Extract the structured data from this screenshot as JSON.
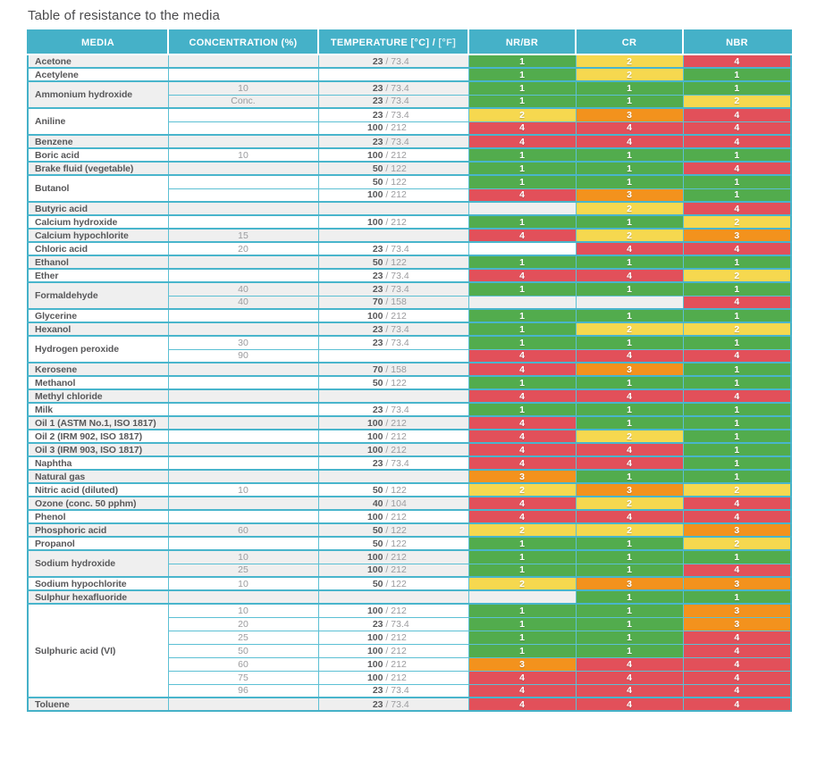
{
  "title": "Table of resistance to the media",
  "colors": {
    "header_bg": "#45b1c8",
    "border": "#5cc0d4",
    "group_border": "#49b5cc",
    "stripe": "#efefef",
    "rating_colors": {
      "1": "#52ac4d",
      "2": "#f6d84f",
      "3": "#f3921d",
      "4": "#e2505a"
    }
  },
  "table": {
    "columns": [
      {
        "key": "media",
        "label": "MEDIA"
      },
      {
        "key": "concentration",
        "label": "CONCENTRATION (%)"
      },
      {
        "key": "temperature",
        "label": "TEMPERATURE [°C] /",
        "label_light": "[°F]"
      },
      {
        "key": "nr-br",
        "label": "NR/BR"
      },
      {
        "key": "cr",
        "label": "CR"
      },
      {
        "key": "nbr",
        "label": "NBR"
      }
    ],
    "groups": [
      {
        "media": "Acetone",
        "rows": [
          {
            "concentration": "",
            "temperature": {
              "c": "23",
              "f": "73.4"
            },
            "ratings": [
              1,
              2,
              4
            ]
          }
        ]
      },
      {
        "media": "Acetylene",
        "rows": [
          {
            "concentration": "",
            "temperature": null,
            "ratings": [
              1,
              2,
              1
            ]
          }
        ]
      },
      {
        "media": "Ammonium hydroxide",
        "rows": [
          {
            "concentration": "10",
            "temperature": {
              "c": "23",
              "f": "73.4"
            },
            "ratings": [
              1,
              1,
              1
            ]
          },
          {
            "concentration": "Conc.",
            "temperature": {
              "c": "23",
              "f": "73.4"
            },
            "ratings": [
              1,
              1,
              2
            ]
          }
        ]
      },
      {
        "media": "Aniline",
        "rows": [
          {
            "concentration": "",
            "temperature": {
              "c": "23",
              "f": "73.4"
            },
            "ratings": [
              2,
              3,
              4
            ]
          },
          {
            "concentration": "",
            "temperature": {
              "c": "100",
              "f": "212"
            },
            "ratings": [
              4,
              4,
              4
            ]
          }
        ]
      },
      {
        "media": "Benzene",
        "rows": [
          {
            "concentration": "",
            "temperature": {
              "c": "23",
              "f": "73.4"
            },
            "ratings": [
              4,
              4,
              4
            ]
          }
        ]
      },
      {
        "media": "Boric acid",
        "rows": [
          {
            "concentration": "10",
            "temperature": {
              "c": "100",
              "f": "212"
            },
            "ratings": [
              1,
              1,
              1
            ]
          }
        ]
      },
      {
        "media": "Brake fluid (vegetable)",
        "rows": [
          {
            "concentration": "",
            "temperature": {
              "c": "50",
              "f": "122"
            },
            "ratings": [
              1,
              1,
              4
            ]
          }
        ]
      },
      {
        "media": "Butanol",
        "rows": [
          {
            "concentration": "",
            "temperature": {
              "c": "50",
              "f": "122"
            },
            "ratings": [
              1,
              1,
              1
            ]
          },
          {
            "concentration": "",
            "temperature": {
              "c": "100",
              "f": "212"
            },
            "ratings": [
              4,
              3,
              1
            ]
          }
        ]
      },
      {
        "media": "Butyric acid",
        "rows": [
          {
            "concentration": "",
            "temperature": null,
            "ratings": [
              null,
              2,
              4
            ]
          }
        ]
      },
      {
        "media": "Calcium hydroxide",
        "rows": [
          {
            "concentration": "",
            "temperature": {
              "c": "100",
              "f": "212"
            },
            "ratings": [
              1,
              1,
              2
            ]
          }
        ]
      },
      {
        "media": "Calcium hypochlorite",
        "rows": [
          {
            "concentration": "15",
            "temperature": null,
            "ratings": [
              4,
              2,
              3
            ]
          }
        ]
      },
      {
        "media": "Chloric acid",
        "rows": [
          {
            "concentration": "20",
            "temperature": {
              "c": "23",
              "f": "73.4"
            },
            "ratings": [
              null,
              4,
              4
            ]
          }
        ]
      },
      {
        "media": "Ethanol",
        "rows": [
          {
            "concentration": "",
            "temperature": {
              "c": "50",
              "f": "122"
            },
            "ratings": [
              1,
              1,
              1
            ]
          }
        ]
      },
      {
        "media": "Ether",
        "rows": [
          {
            "concentration": "",
            "temperature": {
              "c": "23",
              "f": "73.4"
            },
            "ratings": [
              4,
              4,
              2
            ]
          }
        ]
      },
      {
        "media": "Formaldehyde",
        "rows": [
          {
            "concentration": "40",
            "temperature": {
              "c": "23",
              "f": "73.4"
            },
            "ratings": [
              1,
              1,
              1
            ]
          },
          {
            "concentration": "40",
            "temperature": {
              "c": "70",
              "f": "158"
            },
            "ratings": [
              null,
              null,
              4
            ]
          }
        ]
      },
      {
        "media": "Glycerine",
        "rows": [
          {
            "concentration": "",
            "temperature": {
              "c": "100",
              "f": "212"
            },
            "ratings": [
              1,
              1,
              1
            ]
          }
        ]
      },
      {
        "media": "Hexanol",
        "rows": [
          {
            "concentration": "",
            "temperature": {
              "c": "23",
              "f": "73.4"
            },
            "ratings": [
              1,
              2,
              2
            ]
          }
        ]
      },
      {
        "media": "Hydrogen peroxide",
        "rows": [
          {
            "concentration": "30",
            "temperature": {
              "c": "23",
              "f": "73.4"
            },
            "ratings": [
              1,
              1,
              1
            ]
          },
          {
            "concentration": "90",
            "temperature": null,
            "ratings": [
              4,
              4,
              4
            ]
          }
        ]
      },
      {
        "media": "Kerosene",
        "rows": [
          {
            "concentration": "",
            "temperature": {
              "c": "70",
              "f": "158"
            },
            "ratings": [
              4,
              3,
              1
            ]
          }
        ]
      },
      {
        "media": "Methanol",
        "rows": [
          {
            "concentration": "",
            "temperature": {
              "c": "50",
              "f": "122"
            },
            "ratings": [
              1,
              1,
              1
            ]
          }
        ]
      },
      {
        "media": "Methyl chloride",
        "rows": [
          {
            "concentration": "",
            "temperature": null,
            "ratings": [
              4,
              4,
              4
            ]
          }
        ]
      },
      {
        "media": "Milk",
        "rows": [
          {
            "concentration": "",
            "temperature": {
              "c": "23",
              "f": "73.4"
            },
            "ratings": [
              1,
              1,
              1
            ]
          }
        ]
      },
      {
        "media": "Oil 1 (ASTM No.1, ISO 1817)",
        "rows": [
          {
            "concentration": "",
            "temperature": {
              "c": "100",
              "f": "212"
            },
            "ratings": [
              4,
              1,
              1
            ]
          }
        ]
      },
      {
        "media": "Oil 2 (IRM 902, ISO 1817)",
        "rows": [
          {
            "concentration": "",
            "temperature": {
              "c": "100",
              "f": "212"
            },
            "ratings": [
              4,
              2,
              1
            ]
          }
        ]
      },
      {
        "media": "Oil 3 (IRM 903, ISO 1817)",
        "rows": [
          {
            "concentration": "",
            "temperature": {
              "c": "100",
              "f": "212"
            },
            "ratings": [
              4,
              4,
              1
            ]
          }
        ]
      },
      {
        "media": "Naphtha",
        "rows": [
          {
            "concentration": "",
            "temperature": {
              "c": "23",
              "f": "73.4"
            },
            "ratings": [
              4,
              4,
              1
            ]
          }
        ]
      },
      {
        "media": "Natural gas",
        "rows": [
          {
            "concentration": "",
            "temperature": null,
            "ratings": [
              3,
              1,
              1
            ]
          }
        ]
      },
      {
        "media": "Nitric acid (diluted)",
        "rows": [
          {
            "concentration": "10",
            "temperature": {
              "c": "50",
              "f": "122"
            },
            "ratings": [
              2,
              3,
              2
            ]
          }
        ]
      },
      {
        "media": "Ozone (conc. 50 pphm)",
        "rows": [
          {
            "concentration": "",
            "temperature": {
              "c": "40",
              "f": "104"
            },
            "ratings": [
              4,
              2,
              4
            ]
          }
        ]
      },
      {
        "media": "Phenol",
        "rows": [
          {
            "concentration": "",
            "temperature": {
              "c": "100",
              "f": "212"
            },
            "ratings": [
              4,
              4,
              4
            ]
          }
        ]
      },
      {
        "media": "Phosphoric acid",
        "rows": [
          {
            "concentration": "60",
            "temperature": {
              "c": "50",
              "f": "122"
            },
            "ratings": [
              2,
              2,
              3
            ]
          }
        ]
      },
      {
        "media": "Propanol",
        "rows": [
          {
            "concentration": "",
            "temperature": {
              "c": "50",
              "f": "122"
            },
            "ratings": [
              1,
              1,
              2
            ]
          }
        ]
      },
      {
        "media": "Sodium hydroxide",
        "rows": [
          {
            "concentration": "10",
            "temperature": {
              "c": "100",
              "f": "212"
            },
            "ratings": [
              1,
              1,
              1
            ]
          },
          {
            "concentration": "25",
            "temperature": {
              "c": "100",
              "f": "212"
            },
            "ratings": [
              1,
              1,
              4
            ]
          }
        ]
      },
      {
        "media": "Sodium hypochlorite",
        "rows": [
          {
            "concentration": "10",
            "temperature": {
              "c": "50",
              "f": "122"
            },
            "ratings": [
              2,
              3,
              3
            ]
          }
        ]
      },
      {
        "media": "Sulphur hexafluoride",
        "rows": [
          {
            "concentration": "",
            "temperature": null,
            "ratings": [
              null,
              1,
              1
            ]
          }
        ]
      },
      {
        "media": "Sulphuric acid (VI)",
        "rows": [
          {
            "concentration": "10",
            "temperature": {
              "c": "100",
              "f": "212"
            },
            "ratings": [
              1,
              1,
              3
            ]
          },
          {
            "concentration": "20",
            "temperature": {
              "c": "23",
              "f": "73.4"
            },
            "ratings": [
              1,
              1,
              3
            ]
          },
          {
            "concentration": "25",
            "temperature": {
              "c": "100",
              "f": "212"
            },
            "ratings": [
              1,
              1,
              4
            ]
          },
          {
            "concentration": "50",
            "temperature": {
              "c": "100",
              "f": "212"
            },
            "ratings": [
              1,
              1,
              4
            ]
          },
          {
            "concentration": "60",
            "temperature": {
              "c": "100",
              "f": "212"
            },
            "ratings": [
              3,
              4,
              4
            ]
          },
          {
            "concentration": "75",
            "temperature": {
              "c": "100",
              "f": "212"
            },
            "ratings": [
              4,
              4,
              4
            ]
          },
          {
            "concentration": "96",
            "temperature": {
              "c": "23",
              "f": "73.4"
            },
            "ratings": [
              4,
              4,
              4
            ]
          }
        ]
      },
      {
        "media": "Toluene",
        "rows": [
          {
            "concentration": "",
            "temperature": {
              "c": "23",
              "f": "73.4"
            },
            "ratings": [
              4,
              4,
              4
            ]
          }
        ]
      }
    ]
  }
}
